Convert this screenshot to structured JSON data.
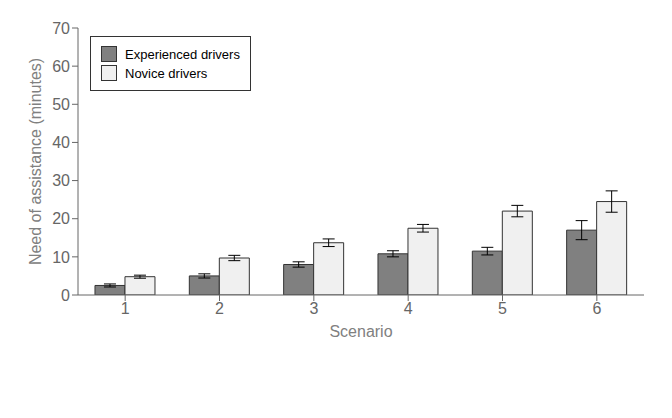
{
  "chart_data": {
    "type": "bar",
    "xlabel": "Scenario",
    "ylabel": "Need of assistance (minutes)",
    "categories": [
      "1",
      "2",
      "3",
      "4",
      "5",
      "6"
    ],
    "series": [
      {
        "name": "Experienced drivers",
        "color": "#808080",
        "values": [
          2.5,
          5.0,
          8.0,
          10.8,
          11.5,
          17.0
        ],
        "errors": [
          0.4,
          0.55,
          0.7,
          0.8,
          1.0,
          2.5
        ]
      },
      {
        "name": "Novice drivers",
        "color": "#f0f0f0",
        "values": [
          4.8,
          9.7,
          13.7,
          17.5,
          22.0,
          24.5
        ],
        "errors": [
          0.4,
          0.7,
          1.0,
          1.0,
          1.5,
          2.8
        ]
      }
    ],
    "ylim": [
      0,
      70
    ],
    "yticks": [
      0,
      10,
      20,
      30,
      40,
      50,
      60,
      70
    ],
    "grid": false,
    "legend": "upper left"
  }
}
